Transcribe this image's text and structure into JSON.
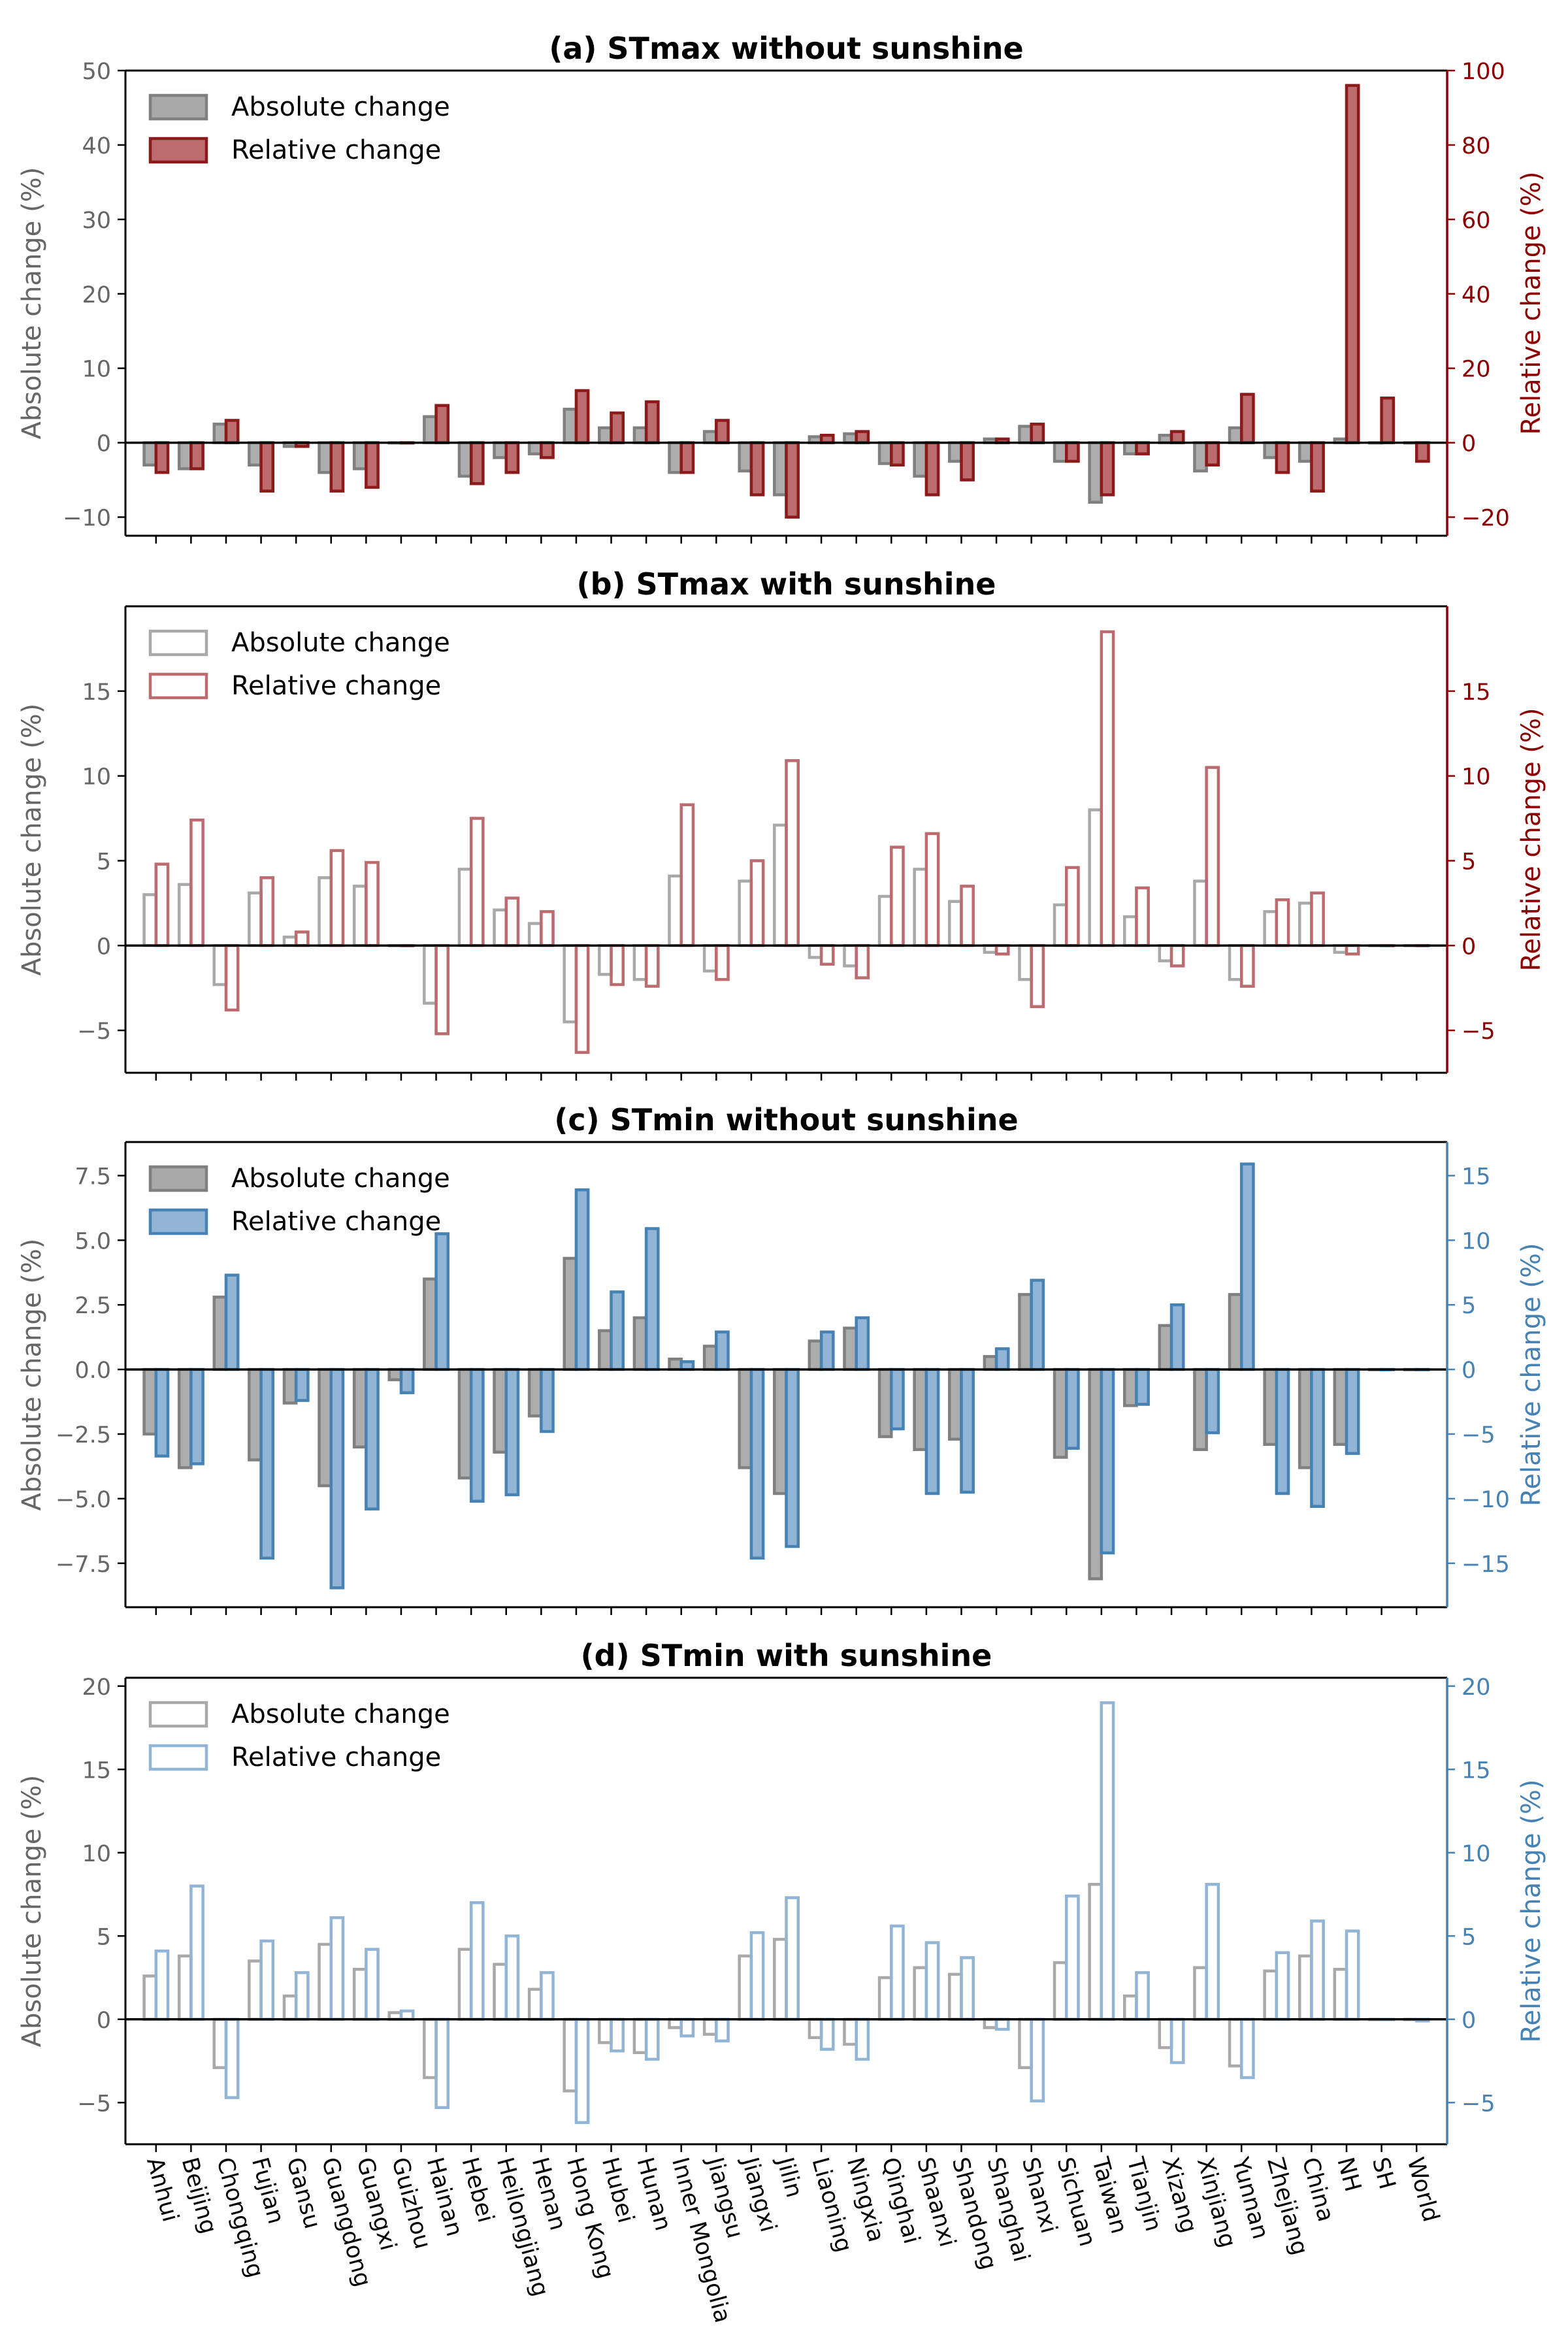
{
  "figure": {
    "categories": [
      "Anhui",
      "Beijing",
      "Chongqing",
      "Fujian",
      "Gansu",
      "Guangdong",
      "Guangxi",
      "Guizhou",
      "Hainan",
      "Hebei",
      "Heilongjiang",
      "Henan",
      "Hong Kong",
      "Hubei",
      "Hunan",
      "Inner Mongolia",
      "Jiangsu",
      "Jiangxi",
      "Jilin",
      "Liaoning",
      "Ningxia",
      "Qinghai",
      "Shaanxi",
      "Shandong",
      "Shanghai",
      "Shanxi",
      "Sichuan",
      "Taiwan",
      "Tianjin",
      "Xizang",
      "Xinjiang",
      "Yunnan",
      "Zhejiang",
      "China",
      "NH",
      "SH",
      "World"
    ]
  },
  "chart_data": [
    {
      "type": "bar",
      "title": "(a) STmax without sunshine",
      "ylabel": "Absolute change (%)",
      "ylabel_right": "Relative change (%)",
      "ylim": [
        -12.5,
        50
      ],
      "ylim_right": [
        -25,
        100
      ],
      "yticks": [
        -10,
        0,
        10,
        20,
        30,
        40,
        50
      ],
      "yticks_right": [
        -20,
        0,
        20,
        40,
        60,
        80,
        100
      ],
      "ticklabels": [
        "−10",
        "0",
        "10",
        "20",
        "30",
        "40",
        "50"
      ],
      "ticklabels_right": [
        "−20",
        "0",
        "20",
        "40",
        "60",
        "80",
        "100"
      ],
      "legend_position": "upper-left",
      "sunshine": false,
      "colors": {
        "abs_fill": "#a9a9a9",
        "abs_edge": "#808080",
        "rel_fill": "#bc6b6f",
        "rel_edge": "#8b1a1a",
        "axis_right": "#8b0000",
        "axis_left": "#666666"
      },
      "series": [
        {
          "name": "Absolute change",
          "axis": "left",
          "values": [
            -3.0,
            -3.5,
            2.5,
            -3.0,
            -0.5,
            -4.0,
            -3.5,
            0.0,
            3.5,
            -4.5,
            -2.0,
            -1.5,
            4.5,
            2.0,
            2.0,
            -4.0,
            1.5,
            -3.8,
            -7.0,
            0.8,
            1.2,
            -2.8,
            -4.5,
            -2.5,
            0.5,
            2.2,
            -2.5,
            -8.0,
            -1.5,
            1.0,
            -3.8,
            2.0,
            -2.0,
            -2.5,
            0.5,
            0.0,
            0.0
          ]
        },
        {
          "name": "Relative change",
          "axis": "right",
          "values": [
            -8,
            -7,
            6,
            -13,
            -1,
            -13,
            -12,
            0,
            10,
            -11,
            -8,
            -4,
            14,
            8,
            11,
            -8,
            6,
            -14,
            -20,
            2,
            3,
            -6,
            -14,
            -10,
            1,
            5,
            -5,
            -14,
            -3,
            3,
            -6,
            13,
            -8,
            -13,
            96,
            12,
            -5
          ]
        }
      ]
    },
    {
      "type": "bar",
      "title": "(b) STmax with sunshine",
      "ylabel": "Absolute change (%)",
      "ylabel_right": "Relative change (%)",
      "ylim": [
        -7.5,
        20
      ],
      "ylim_right": [
        -7.5,
        20
      ],
      "yticks": [
        -5,
        0,
        5,
        10,
        15
      ],
      "yticks_right": [
        -5,
        0,
        5,
        10,
        15
      ],
      "ticklabels": [
        "−5",
        "0",
        "5",
        "10",
        "15"
      ],
      "ticklabels_right": [
        "−5",
        "0",
        "5",
        "10",
        "15"
      ],
      "legend_position": "upper-left",
      "sunshine": true,
      "colors": {
        "abs_edge": "#a9a9a9",
        "rel_edge": "#bc6b6f",
        "axis_right": "#8b0000",
        "axis_left": "#666666"
      },
      "series": [
        {
          "name": "Absolute change",
          "axis": "left",
          "values": [
            3.0,
            3.6,
            -2.3,
            3.1,
            0.5,
            4.0,
            3.5,
            0.0,
            -3.4,
            4.5,
            2.1,
            1.3,
            -4.5,
            -1.7,
            -2.0,
            4.1,
            -1.5,
            3.8,
            7.1,
            -0.7,
            -1.2,
            2.9,
            4.5,
            2.6,
            -0.4,
            -2.0,
            2.4,
            8.0,
            1.7,
            -0.9,
            3.8,
            -2.0,
            2.0,
            2.5,
            -0.4,
            0.0,
            0.0
          ]
        },
        {
          "name": "Relative change",
          "axis": "right",
          "values": [
            4.8,
            7.4,
            -3.8,
            4.0,
            0.8,
            5.6,
            4.9,
            0.0,
            -5.2,
            7.5,
            2.8,
            2.0,
            -6.3,
            -2.3,
            -2.4,
            8.3,
            -2.0,
            5.0,
            10.9,
            -1.1,
            -1.9,
            5.8,
            6.6,
            3.5,
            -0.5,
            -3.6,
            4.6,
            18.5,
            3.4,
            -1.2,
            10.5,
            -2.4,
            2.7,
            3.1,
            -0.5,
            0.0,
            0.0
          ]
        }
      ]
    },
    {
      "type": "bar",
      "title": "(c) STmin without sunshine",
      "ylabel": "Absolute change (%)",
      "ylabel_right": "Relative change (%)",
      "ylim": [
        -9.2,
        8.8
      ],
      "ylim_right": [
        -18.4,
        17.6
      ],
      "yticks": [
        -7.5,
        -5.0,
        -2.5,
        0.0,
        2.5,
        5.0,
        7.5
      ],
      "yticks_right": [
        -15,
        -10,
        -5,
        0,
        5,
        10,
        15
      ],
      "ticklabels": [
        "−7.5",
        "−5.0",
        "−2.5",
        "0.0",
        "2.5",
        "5.0",
        "7.5"
      ],
      "ticklabels_right": [
        "−15",
        "−10",
        "−5",
        "0",
        "5",
        "10",
        "15"
      ],
      "legend_position": "upper-left",
      "sunshine": false,
      "colors": {
        "abs_fill": "#a9a9a9",
        "abs_edge": "#808080",
        "rel_fill": "#92b5d6",
        "rel_edge": "#4682b4",
        "axis_right": "#4682b4",
        "axis_left": "#666666"
      },
      "series": [
        {
          "name": "Absolute change",
          "axis": "left",
          "values": [
            -2.5,
            -3.8,
            2.8,
            -3.5,
            -1.3,
            -4.5,
            -3.0,
            -0.4,
            3.5,
            -4.2,
            -3.2,
            -1.8,
            4.3,
            1.5,
            2.0,
            0.4,
            0.9,
            -3.8,
            -4.8,
            1.1,
            1.6,
            -2.6,
            -3.1,
            -2.7,
            0.5,
            2.9,
            -3.4,
            -8.1,
            -1.4,
            1.7,
            -3.1,
            2.9,
            -2.9,
            -3.8,
            -2.9,
            0.0,
            0.0
          ]
        },
        {
          "name": "Relative change",
          "axis": "right",
          "values": [
            -6.7,
            -7.3,
            7.3,
            -14.6,
            -2.4,
            -16.9,
            -10.8,
            -1.8,
            10.5,
            -10.2,
            -9.7,
            -4.8,
            13.9,
            6.0,
            10.9,
            0.6,
            2.9,
            -14.6,
            -13.7,
            2.9,
            4.0,
            -4.6,
            -9.6,
            -9.5,
            1.6,
            6.9,
            -6.1,
            -14.2,
            -2.7,
            5.0,
            -4.9,
            15.9,
            -9.6,
            -10.6,
            -6.5,
            0.0,
            0.0
          ]
        }
      ]
    },
    {
      "type": "bar",
      "title": "(d) STmin with sunshine",
      "ylabel": "Absolute change (%)",
      "ylabel_right": "Relative change (%)",
      "ylim": [
        -7.5,
        20.5
      ],
      "ylim_right": [
        -7.5,
        20.5
      ],
      "yticks": [
        -5,
        0,
        5,
        10,
        15,
        20
      ],
      "yticks_right": [
        -5,
        0,
        5,
        10,
        15,
        20
      ],
      "ticklabels": [
        "−5",
        "0",
        "5",
        "10",
        "15",
        "20"
      ],
      "ticklabels_right": [
        "−5",
        "0",
        "5",
        "10",
        "15",
        "20"
      ],
      "legend_position": "upper-left",
      "sunshine": true,
      "colors": {
        "abs_edge": "#a9a9a9",
        "rel_edge": "#92b5d6",
        "axis_right": "#4682b4",
        "axis_left": "#666666"
      },
      "series": [
        {
          "name": "Absolute change",
          "axis": "left",
          "values": [
            2.6,
            3.8,
            -2.9,
            3.5,
            1.4,
            4.5,
            3.0,
            0.4,
            -3.5,
            4.2,
            3.3,
            1.8,
            -4.3,
            -1.4,
            -2.0,
            -0.5,
            -0.9,
            3.8,
            4.8,
            -1.1,
            -1.5,
            2.5,
            3.1,
            2.7,
            -0.5,
            -2.9,
            3.4,
            8.1,
            1.4,
            -1.7,
            3.1,
            -2.8,
            2.9,
            3.8,
            3.0,
            0.0,
            0.0
          ]
        },
        {
          "name": "Relative change",
          "axis": "right",
          "values": [
            4.1,
            8.0,
            -4.7,
            4.7,
            2.8,
            6.1,
            4.2,
            0.5,
            -5.3,
            7.0,
            5.0,
            2.8,
            -6.2,
            -1.9,
            -2.4,
            -1.0,
            -1.3,
            5.2,
            7.3,
            -1.8,
            -2.4,
            5.6,
            4.6,
            3.7,
            -0.6,
            -4.9,
            7.4,
            19.0,
            2.8,
            -2.6,
            8.1,
            -3.5,
            4.0,
            5.9,
            5.3,
            0.0,
            -0.1
          ]
        }
      ]
    }
  ]
}
